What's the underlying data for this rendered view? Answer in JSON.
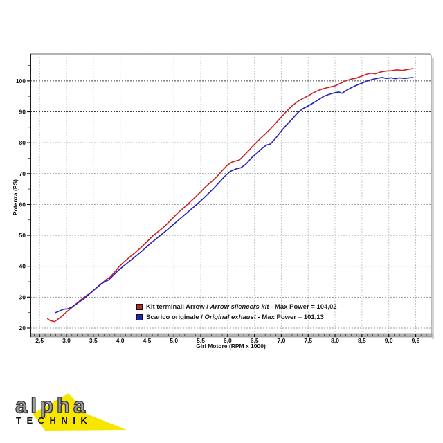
{
  "chart_data": {
    "type": "line",
    "title": "",
    "xlabel": "Giri Motore (RPM x 1000)",
    "ylabel": "Potenza (PS)",
    "xlim": [
      2.33,
      9.79
    ],
    "ylim": [
      18.2,
      108.7
    ],
    "grid": "major-dashed",
    "legend_position": "inside-bottom-center",
    "x_major_ticks": [
      2.5,
      3.0,
      3.5,
      4.0,
      4.5,
      5.0,
      5.5,
      6.0,
      6.5,
      7.0,
      7.5,
      8.0,
      8.5,
      9.0,
      9.5
    ],
    "x_tick_labels": [
      "2,5",
      "3,0",
      "3,5",
      "4,0",
      "4,5",
      "5,0",
      "5,5",
      "6,0",
      "6,5",
      "7,0",
      "7,5",
      "8,0",
      "8,5",
      "9,0",
      "9,5"
    ],
    "x_minor_step": 0.1,
    "y_major_ticks": [
      20,
      30,
      40,
      50,
      60,
      70,
      80,
      90,
      100
    ],
    "y_tick_labels": [
      "20",
      "30",
      "40",
      "50",
      "60",
      "70",
      "80",
      "90",
      "100"
    ],
    "y_minor_step": 5,
    "series": [
      {
        "name": "Kit terminali Arrow / Arrow silencers kit",
        "max_power": "104,02",
        "color": "#cc2222",
        "points": [
          [
            2.65,
            23.0
          ],
          [
            2.7,
            22.4
          ],
          [
            2.78,
            22.1
          ],
          [
            2.85,
            23.0
          ],
          [
            2.92,
            23.9
          ],
          [
            3.0,
            25.2
          ],
          [
            3.08,
            26.3
          ],
          [
            3.15,
            27.4
          ],
          [
            3.22,
            28.4
          ],
          [
            3.3,
            29.6
          ],
          [
            3.38,
            30.6
          ],
          [
            3.45,
            31.3
          ],
          [
            3.52,
            32.4
          ],
          [
            3.6,
            33.7
          ],
          [
            3.68,
            34.8
          ],
          [
            3.75,
            35.8
          ],
          [
            3.82,
            36.6
          ],
          [
            3.9,
            38.2
          ],
          [
            3.98,
            39.9
          ],
          [
            4.05,
            41.1
          ],
          [
            4.12,
            42.1
          ],
          [
            4.2,
            43.3
          ],
          [
            4.3,
            44.7
          ],
          [
            4.4,
            46.3
          ],
          [
            4.5,
            48.0
          ],
          [
            4.6,
            49.7
          ],
          [
            4.7,
            51.1
          ],
          [
            4.8,
            52.5
          ],
          [
            4.9,
            54.2
          ],
          [
            5.0,
            56.0
          ],
          [
            5.1,
            57.7
          ],
          [
            5.2,
            59.2
          ],
          [
            5.3,
            60.8
          ],
          [
            5.4,
            62.4
          ],
          [
            5.5,
            64.1
          ],
          [
            5.6,
            65.9
          ],
          [
            5.7,
            67.4
          ],
          [
            5.8,
            69.0
          ],
          [
            5.9,
            71.0
          ],
          [
            6.0,
            72.8
          ],
          [
            6.08,
            73.7
          ],
          [
            6.15,
            74.1
          ],
          [
            6.22,
            74.4
          ],
          [
            6.3,
            75.8
          ],
          [
            6.4,
            77.6
          ],
          [
            6.5,
            79.5
          ],
          [
            6.6,
            81.2
          ],
          [
            6.7,
            82.8
          ],
          [
            6.8,
            84.5
          ],
          [
            6.9,
            86.4
          ],
          [
            7.0,
            88.3
          ],
          [
            7.1,
            90.2
          ],
          [
            7.2,
            91.9
          ],
          [
            7.3,
            93.3
          ],
          [
            7.4,
            94.3
          ],
          [
            7.5,
            95.2
          ],
          [
            7.6,
            96.2
          ],
          [
            7.7,
            97.0
          ],
          [
            7.8,
            97.6
          ],
          [
            7.9,
            98.0
          ],
          [
            8.0,
            98.4
          ],
          [
            8.1,
            99.2
          ],
          [
            8.2,
            100.0
          ],
          [
            8.3,
            100.6
          ],
          [
            8.4,
            100.9
          ],
          [
            8.5,
            101.6
          ],
          [
            8.6,
            102.2
          ],
          [
            8.68,
            102.5
          ],
          [
            8.75,
            102.3
          ],
          [
            8.85,
            102.9
          ],
          [
            8.95,
            103.2
          ],
          [
            9.05,
            103.3
          ],
          [
            9.15,
            103.6
          ],
          [
            9.25,
            103.4
          ],
          [
            9.35,
            103.7
          ],
          [
            9.45,
            104.0
          ]
        ]
      },
      {
        "name": "Scarico originale / Original exhaust",
        "max_power": "101,13",
        "color": "#2222bb",
        "points": [
          [
            2.8,
            25.0
          ],
          [
            2.88,
            25.6
          ],
          [
            2.95,
            26.1
          ],
          [
            3.02,
            26.2
          ],
          [
            3.1,
            26.8
          ],
          [
            3.18,
            27.7
          ],
          [
            3.25,
            28.6
          ],
          [
            3.32,
            29.4
          ],
          [
            3.4,
            30.6
          ],
          [
            3.5,
            32.2
          ],
          [
            3.58,
            33.3
          ],
          [
            3.65,
            34.3
          ],
          [
            3.72,
            35.1
          ],
          [
            3.78,
            35.5
          ],
          [
            3.85,
            36.7
          ],
          [
            3.95,
            38.4
          ],
          [
            4.05,
            39.9
          ],
          [
            4.15,
            41.3
          ],
          [
            4.25,
            42.7
          ],
          [
            4.35,
            44.1
          ],
          [
            4.45,
            45.6
          ],
          [
            4.55,
            47.2
          ],
          [
            4.65,
            48.6
          ],
          [
            4.75,
            50.0
          ],
          [
            4.85,
            51.4
          ],
          [
            4.95,
            52.9
          ],
          [
            5.05,
            54.4
          ],
          [
            5.15,
            55.9
          ],
          [
            5.25,
            57.4
          ],
          [
            5.35,
            58.9
          ],
          [
            5.45,
            60.4
          ],
          [
            5.55,
            62.0
          ],
          [
            5.65,
            63.7
          ],
          [
            5.75,
            65.4
          ],
          [
            5.85,
            67.3
          ],
          [
            5.95,
            69.2
          ],
          [
            6.05,
            70.7
          ],
          [
            6.15,
            71.5
          ],
          [
            6.25,
            71.9
          ],
          [
            6.35,
            73.2
          ],
          [
            6.45,
            75.2
          ],
          [
            6.55,
            76.7
          ],
          [
            6.65,
            78.3
          ],
          [
            6.72,
            79.2
          ],
          [
            6.8,
            79.6
          ],
          [
            6.9,
            81.6
          ],
          [
            7.0,
            83.8
          ],
          [
            7.1,
            85.8
          ],
          [
            7.2,
            87.6
          ],
          [
            7.3,
            89.6
          ],
          [
            7.4,
            91.0
          ],
          [
            7.5,
            91.9
          ],
          [
            7.6,
            92.9
          ],
          [
            7.7,
            94.0
          ],
          [
            7.8,
            95.1
          ],
          [
            7.9,
            95.7
          ],
          [
            8.0,
            96.2
          ],
          [
            8.07,
            96.4
          ],
          [
            8.13,
            96.0
          ],
          [
            8.2,
            96.8
          ],
          [
            8.3,
            97.8
          ],
          [
            8.4,
            98.6
          ],
          [
            8.5,
            99.3
          ],
          [
            8.6,
            100.0
          ],
          [
            8.7,
            100.5
          ],
          [
            8.8,
            100.9
          ],
          [
            8.88,
            101.1
          ],
          [
            8.95,
            100.8
          ],
          [
            9.05,
            101.0
          ],
          [
            9.12,
            100.7
          ],
          [
            9.2,
            101.0
          ],
          [
            9.3,
            100.8
          ],
          [
            9.38,
            101.0
          ],
          [
            9.45,
            101.1
          ]
        ]
      }
    ]
  },
  "axes": {
    "x_title": "Giri Motore (RPM x 1000)",
    "y_title": "Potenza (PS)"
  },
  "legend": {
    "rows": [
      {
        "prefix": "Kit terminali Arrow / ",
        "italic": "Arrow silencers kit",
        "suffix": " - Max Power = 104,02",
        "color": "#cc2222"
      },
      {
        "prefix": "Scarico originale / ",
        "italic": "Original exhaust",
        "suffix": " - Max Power = 101,13",
        "color": "#2222bb"
      }
    ]
  },
  "logo": {
    "line1": "alpha",
    "line2": "TECHNIK",
    "accent_color": "#f7e600",
    "text_color": "#9c9c9c"
  },
  "style_colors": {
    "grid_vertical": "#c6c6c6",
    "grid_horizontal": "#9a9a9a",
    "grid_horizontal_dark": "#3f3f3f",
    "frame": "#9a9a9a",
    "axis_spine": "#1a1a1a",
    "bottom_bar": "#b4b4b4"
  }
}
